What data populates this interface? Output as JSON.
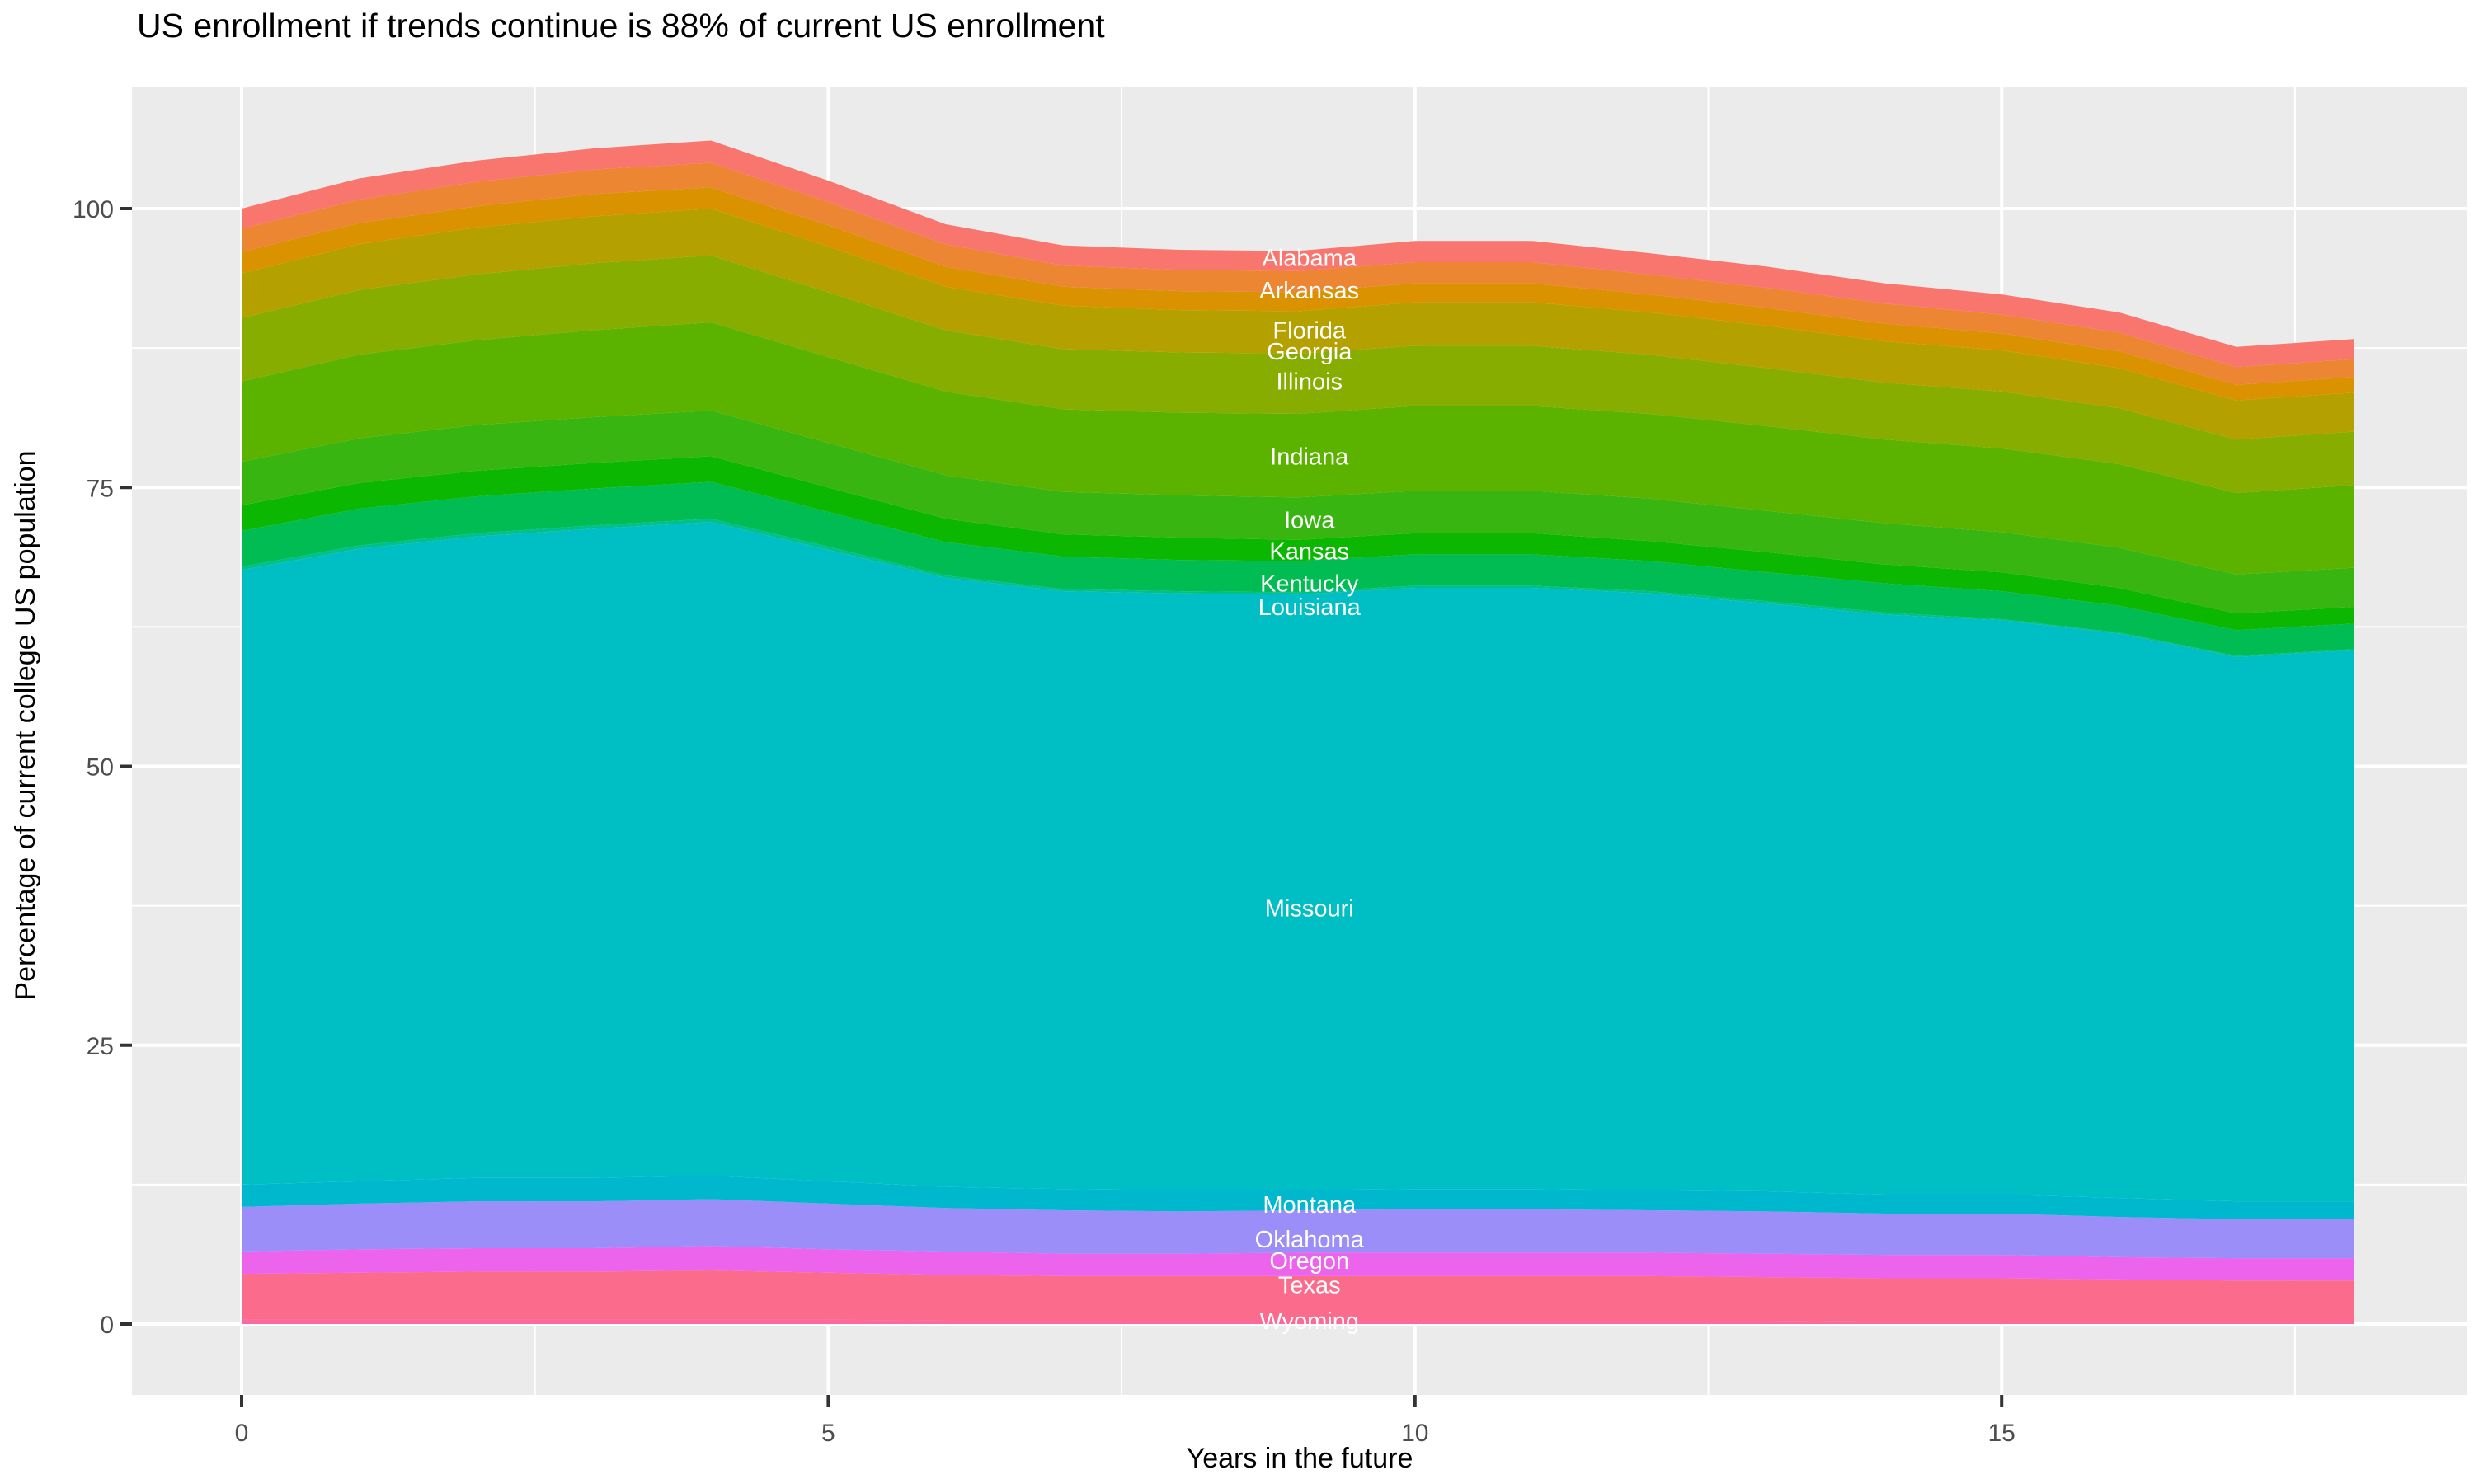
{
  "title": "US enrollment if trends continue is 88% of current US enrollment",
  "x_axis": {
    "label": "Years in the future",
    "tick_labels": [
      "0",
      "5",
      "10",
      "15"
    ],
    "ticks": [
      0,
      5,
      10,
      15
    ],
    "minor_ticks": [
      2.5,
      7.5,
      12.5,
      17.5
    ],
    "range": [
      0,
      18
    ]
  },
  "y_axis": {
    "label": "Percentage of current college US population",
    "tick_labels": [
      "0",
      "25",
      "50",
      "75",
      "100"
    ],
    "ticks": [
      0,
      25,
      50,
      75,
      100
    ],
    "minor_ticks": [
      12.5,
      37.5,
      62.5,
      87.5
    ],
    "range": [
      0,
      110
    ]
  },
  "colors": {
    "panel_background": "#EBEBEB",
    "grid_major": "#FFFFFF",
    "grid_minor": "#F5F5F5",
    "tick_mark": "#333333",
    "tick_label": "#4D4D4D",
    "title_text": "#000000",
    "state_label_text": "#FFFFFF"
  },
  "chart_data": {
    "type": "area",
    "stacked": true,
    "title": "US enrollment if trends continue is 88% of current US enrollment",
    "xlabel": "Years in the future",
    "ylabel": "Percentage of current college US population",
    "xlim": [
      0,
      18
    ],
    "ylim": [
      0,
      110
    ],
    "grid": true,
    "legend": "none",
    "label_x": 9.1,
    "x": [
      0,
      1,
      2,
      3,
      4,
      5,
      6,
      7,
      8,
      9,
      10,
      11,
      12,
      13,
      14,
      15,
      16,
      17,
      18
    ],
    "total_at_start": 100.0,
    "total_at_end": 88.3,
    "series": [
      {
        "name": "Alabama",
        "color": "#F8766D",
        "label_y": 95.6,
        "values": [
          1.8,
          1.9,
          1.9,
          1.9,
          2.0,
          1.9,
          1.8,
          1.8,
          1.8,
          1.8,
          1.9,
          1.9,
          1.9,
          1.9,
          1.8,
          1.8,
          1.8,
          1.8,
          1.8
        ]
      },
      {
        "name": "Arkansas",
        "color": "#EC8633",
        "label_y": 92.7,
        "values": [
          2.1,
          2.1,
          2.2,
          2.2,
          2.2,
          2.1,
          2.0,
          1.9,
          1.9,
          1.9,
          1.9,
          1.9,
          1.8,
          1.8,
          1.8,
          1.7,
          1.7,
          1.6,
          1.6
        ]
      },
      {
        "name": "Florida",
        "color": "#DB9200",
        "label_y": 89.1,
        "values": [
          1.9,
          1.9,
          1.9,
          2.0,
          1.9,
          1.9,
          1.8,
          1.7,
          1.7,
          1.7,
          1.7,
          1.7,
          1.6,
          1.6,
          1.6,
          1.5,
          1.5,
          1.4,
          1.4
        ]
      },
      {
        "name": "Georgia",
        "color": "#B4A100",
        "label_y": 87.2,
        "values": [
          4.0,
          4.1,
          4.2,
          4.2,
          4.2,
          4.1,
          3.9,
          3.9,
          3.8,
          3.8,
          3.9,
          3.9,
          3.8,
          3.8,
          3.7,
          3.7,
          3.6,
          3.5,
          3.5
        ]
      },
      {
        "name": "Illinois",
        "color": "#86AD00",
        "label_y": 84.5,
        "values": [
          5.7,
          5.8,
          5.9,
          6.0,
          6.0,
          5.8,
          5.5,
          5.4,
          5.4,
          5.4,
          5.4,
          5.4,
          5.3,
          5.2,
          5.1,
          5.1,
          5.0,
          4.8,
          4.8
        ]
      },
      {
        "name": "Indiana",
        "color": "#5BB300",
        "label_y": 77.8,
        "values": [
          7.2,
          7.5,
          7.6,
          7.8,
          7.9,
          7.7,
          7.5,
          7.4,
          7.4,
          7.5,
          7.6,
          7.6,
          7.6,
          7.6,
          7.5,
          7.5,
          7.5,
          7.3,
          7.4
        ]
      },
      {
        "name": "Iowa",
        "color": "#39B512",
        "label_y": 72.1,
        "values": [
          3.9,
          4.0,
          4.1,
          4.1,
          4.1,
          4.0,
          3.9,
          3.8,
          3.8,
          3.8,
          3.8,
          3.8,
          3.8,
          3.7,
          3.7,
          3.6,
          3.6,
          3.5,
          3.5
        ]
      },
      {
        "name": "Kansas",
        "color": "#0CB702",
        "label_y": 69.3,
        "values": [
          2.3,
          2.3,
          2.3,
          2.3,
          2.3,
          2.2,
          2.1,
          2.0,
          2.0,
          1.9,
          1.9,
          1.9,
          1.8,
          1.8,
          1.7,
          1.7,
          1.6,
          1.5,
          1.5
        ]
      },
      {
        "name": "Kentucky",
        "color": "#00BC52",
        "label_y": 66.4,
        "values": [
          3.2,
          3.3,
          3.3,
          3.3,
          3.3,
          3.1,
          3.0,
          2.9,
          2.8,
          2.8,
          2.8,
          2.8,
          2.7,
          2.6,
          2.6,
          2.5,
          2.4,
          2.3,
          2.3
        ]
      },
      {
        "name": "Louisiana",
        "color": "#00C08D",
        "label_y": 64.3,
        "values": [
          0.3,
          0.3,
          0.3,
          0.3,
          0.3,
          0.3,
          0.2,
          0.2,
          0.2,
          0.2,
          0.2,
          0.2,
          0.2,
          0.2,
          0.2,
          0.1,
          0.1,
          0.1,
          0.1
        ]
      },
      {
        "name": "Missouri",
        "color": "#00BFC4",
        "label_y": 37.3,
        "values": [
          55.1,
          56.7,
          57.5,
          58.2,
          58.6,
          56.6,
          54.6,
          53.6,
          53.5,
          53.4,
          53.9,
          53.9,
          53.5,
          52.7,
          52.0,
          51.5,
          50.6,
          48.8,
          49.4
        ]
      },
      {
        "name": "Montana",
        "color": "#00B8CE",
        "label_y": 10.7,
        "values": [
          2.0,
          2.0,
          2.1,
          2.1,
          2.1,
          2.0,
          1.9,
          1.9,
          1.9,
          1.8,
          1.8,
          1.8,
          1.8,
          1.8,
          1.7,
          1.7,
          1.7,
          1.6,
          1.6
        ]
      },
      {
        "name": "Oklahoma",
        "color": "#9B8EF8",
        "label_y": 7.6,
        "values": [
          4.0,
          4.1,
          4.2,
          4.2,
          4.2,
          4.1,
          3.9,
          3.9,
          3.8,
          3.8,
          3.9,
          3.9,
          3.8,
          3.8,
          3.7,
          3.7,
          3.6,
          3.5,
          3.5
        ]
      },
      {
        "name": "Oregon",
        "color": "#EC64EC",
        "label_y": 5.7,
        "values": [
          2.0,
          2.1,
          2.1,
          2.1,
          2.2,
          2.1,
          2.1,
          2.0,
          2.0,
          2.1,
          2.1,
          2.1,
          2.1,
          2.1,
          2.1,
          2.1,
          2.0,
          2.0,
          2.0
        ]
      },
      {
        "name": "Texas",
        "color": "#FB6B8C",
        "label_y": 3.5,
        "values": [
          4.1,
          4.2,
          4.3,
          4.3,
          4.4,
          4.2,
          4.1,
          4.0,
          4.0,
          4.0,
          4.0,
          4.0,
          4.0,
          3.9,
          3.9,
          3.9,
          3.8,
          3.7,
          3.7
        ]
      },
      {
        "name": "Wyoming",
        "color": "#FF689E",
        "label_y": 0.3,
        "values": [
          0.4,
          0.4,
          0.4,
          0.4,
          0.4,
          0.4,
          0.3,
          0.3,
          0.3,
          0.3,
          0.3,
          0.3,
          0.3,
          0.3,
          0.2,
          0.2,
          0.2,
          0.2,
          0.2
        ]
      }
    ]
  }
}
